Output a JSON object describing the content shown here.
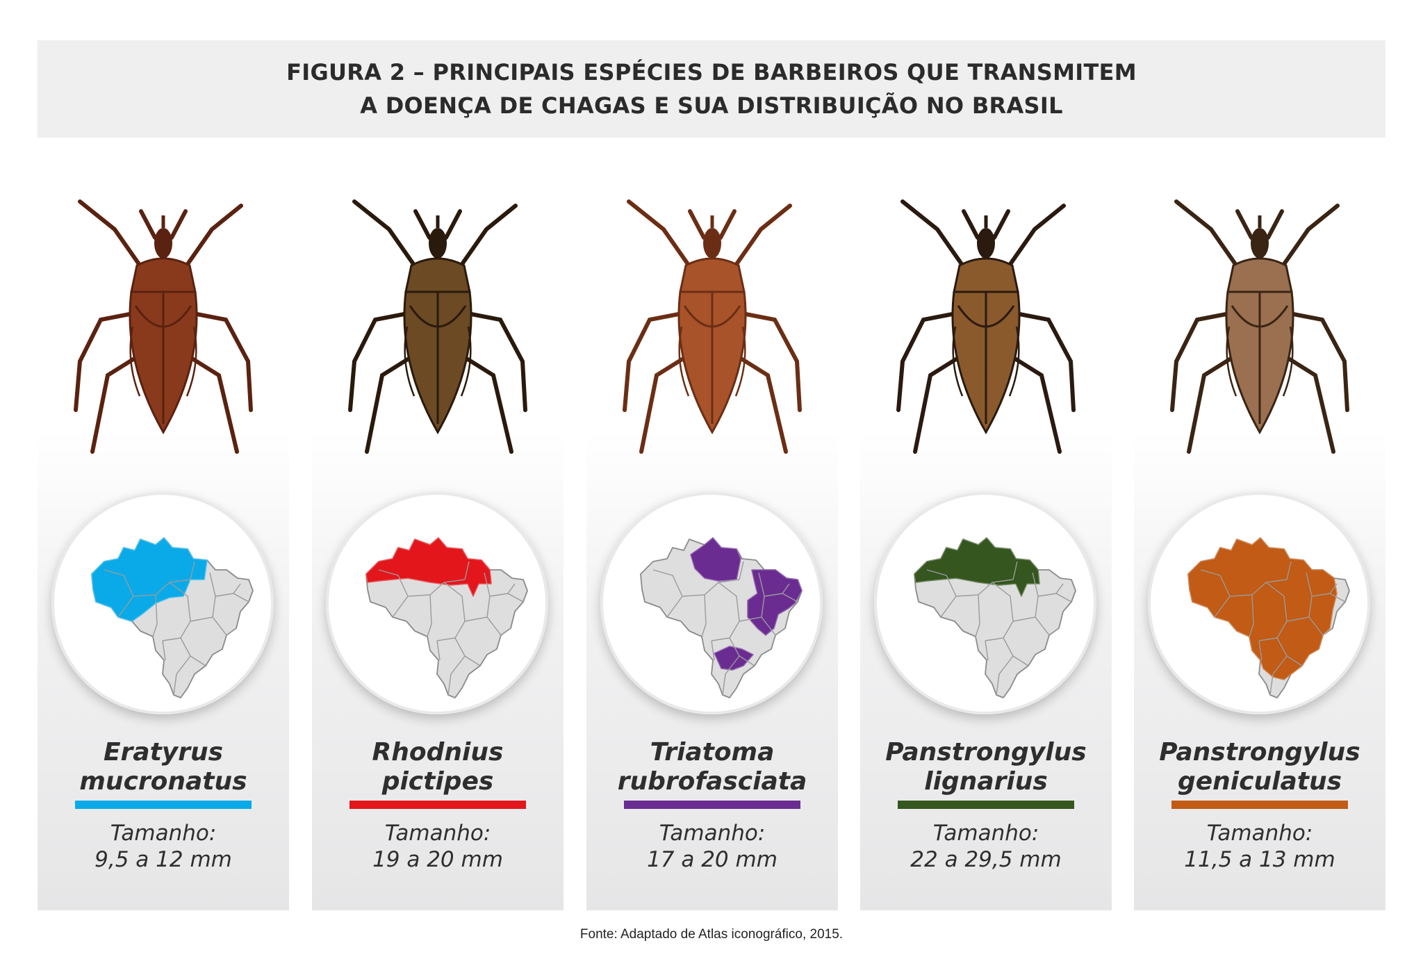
{
  "header": {
    "line1": "FIGURA 2 – PRINCIPAIS ESPÉCIES DE BARBEIROS QUE TRANSMITEM",
    "line2": "A DOENÇA DE CHAGAS E SUA DISTRIBUIÇÃO NO BRASIL"
  },
  "species": [
    {
      "name1": "Eratyrus",
      "name2": "mucronatus",
      "size_label": "Tamanho:",
      "size_value": "9,5 a 12 mm",
      "color": "#0aaae8",
      "bug_color": "#8a3a1c",
      "bug_dark": "#5a2210",
      "icon": "beetle-icon",
      "map_region": "north-west"
    },
    {
      "name1": "Rhodnius",
      "name2": "pictipes",
      "size_label": "Tamanho:",
      "size_value": "19 a 20 mm",
      "color": "#e3161c",
      "bug_color": "#6b4a24",
      "bug_dark": "#2a1a0c",
      "icon": "beetle-icon",
      "map_region": "north"
    },
    {
      "name1": "Triatoma",
      "name2": "rubrofasciata",
      "size_label": "Tamanho:",
      "size_value": "17 a 20 mm",
      "color": "#6a2c91",
      "bug_color": "#a8532a",
      "bug_dark": "#6b2e14",
      "icon": "beetle-icon",
      "map_region": "east-coast"
    },
    {
      "name1": "Panstrongylus",
      "name2": "lignarius",
      "size_label": "Tamanho:",
      "size_value": "22 a 29,5 mm",
      "color": "#35561e",
      "bug_color": "#8a5a2c",
      "bug_dark": "#2a1a10",
      "icon": "beetle-icon",
      "map_region": "north"
    },
    {
      "name1": "Panstrongylus",
      "name2": "geniculatus",
      "size_label": "Tamanho:",
      "size_value": "11,5 a 13 mm",
      "color": "#c15b15",
      "bug_color": "#9a7050",
      "bug_dark": "#3a2414",
      "icon": "beetle-icon",
      "map_region": "almost-all"
    }
  ],
  "source": "Fonte:  Adaptado de Atlas iconográfico, 2015."
}
